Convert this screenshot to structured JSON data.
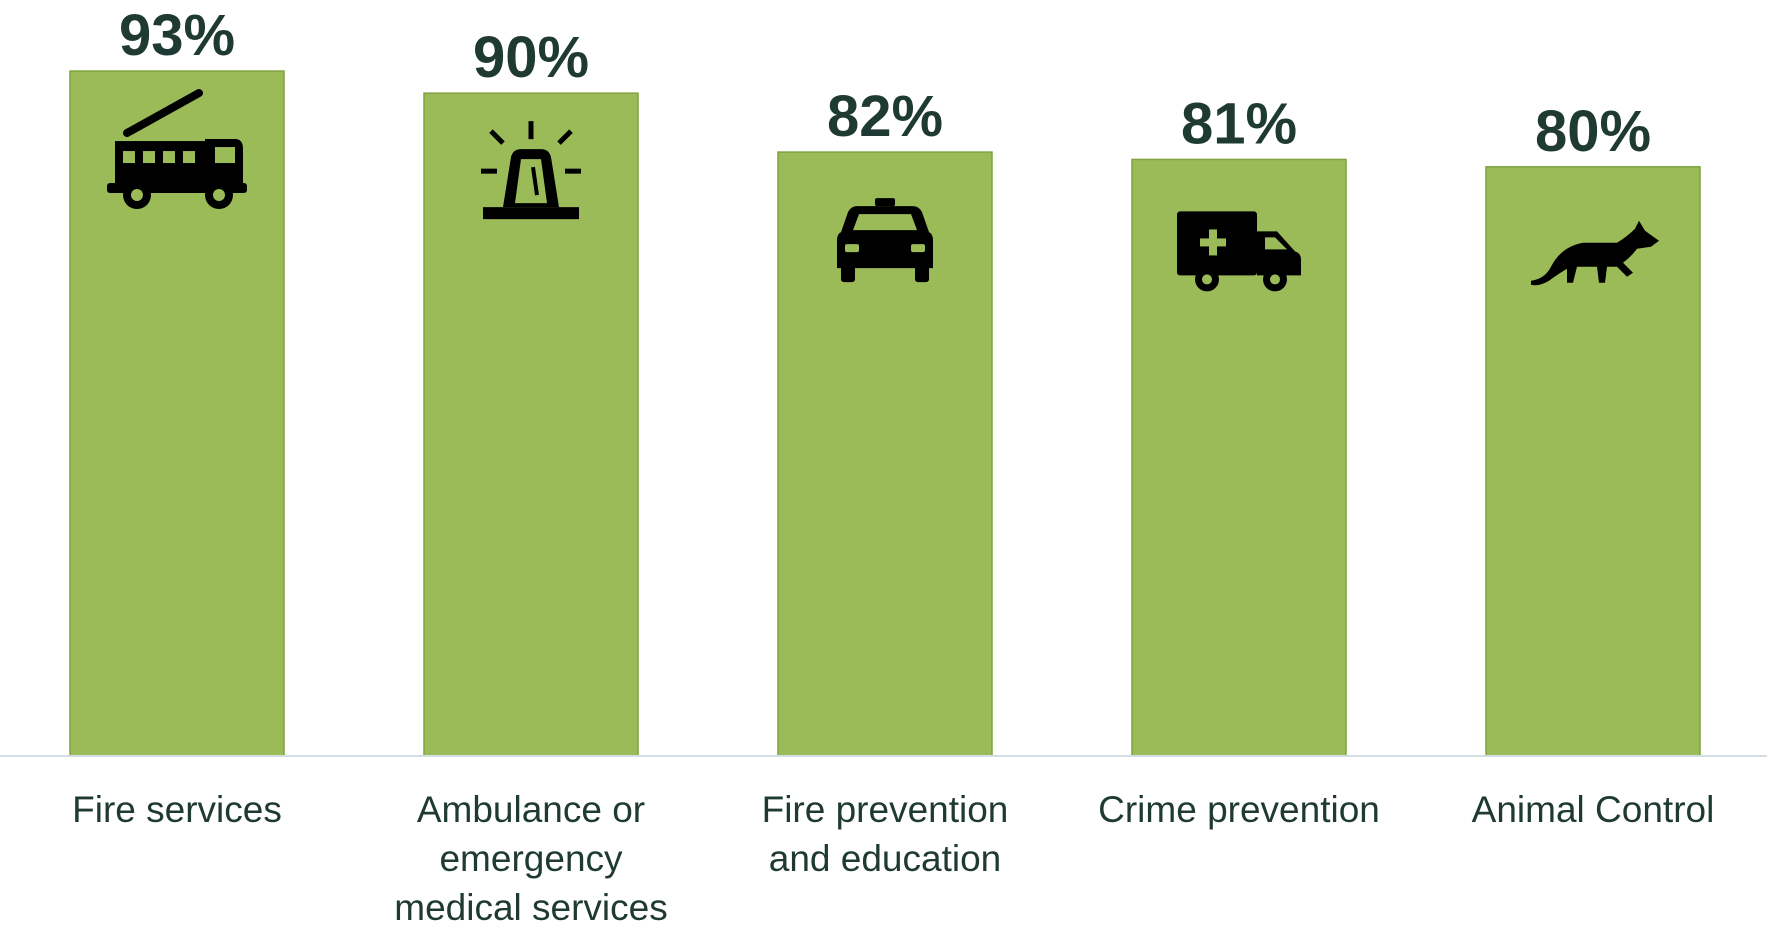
{
  "chart_data": {
    "type": "bar",
    "title": "",
    "xlabel": "",
    "ylabel": "",
    "ylim": [
      0,
      100
    ],
    "grid": false,
    "categories": [
      [
        "Fire services"
      ],
      [
        "Ambulance or",
        "emergency",
        "medical services"
      ],
      [
        "Fire prevention",
        "and education"
      ],
      [
        "Crime prevention"
      ],
      [
        "Animal Control"
      ]
    ],
    "values": [
      93,
      90,
      82,
      81,
      80
    ],
    "data_labels": [
      "93%",
      "90%",
      "82%",
      "81%",
      "80%"
    ],
    "icons": [
      "fire-truck-icon",
      "siren-icon",
      "police-car-icon",
      "ambulance-icon",
      "fox-icon"
    ],
    "bar_color": "#9bbb59",
    "bar_border_color": "#7ea33f",
    "text_color": "#1f3a33",
    "icon_color": "#000000"
  }
}
